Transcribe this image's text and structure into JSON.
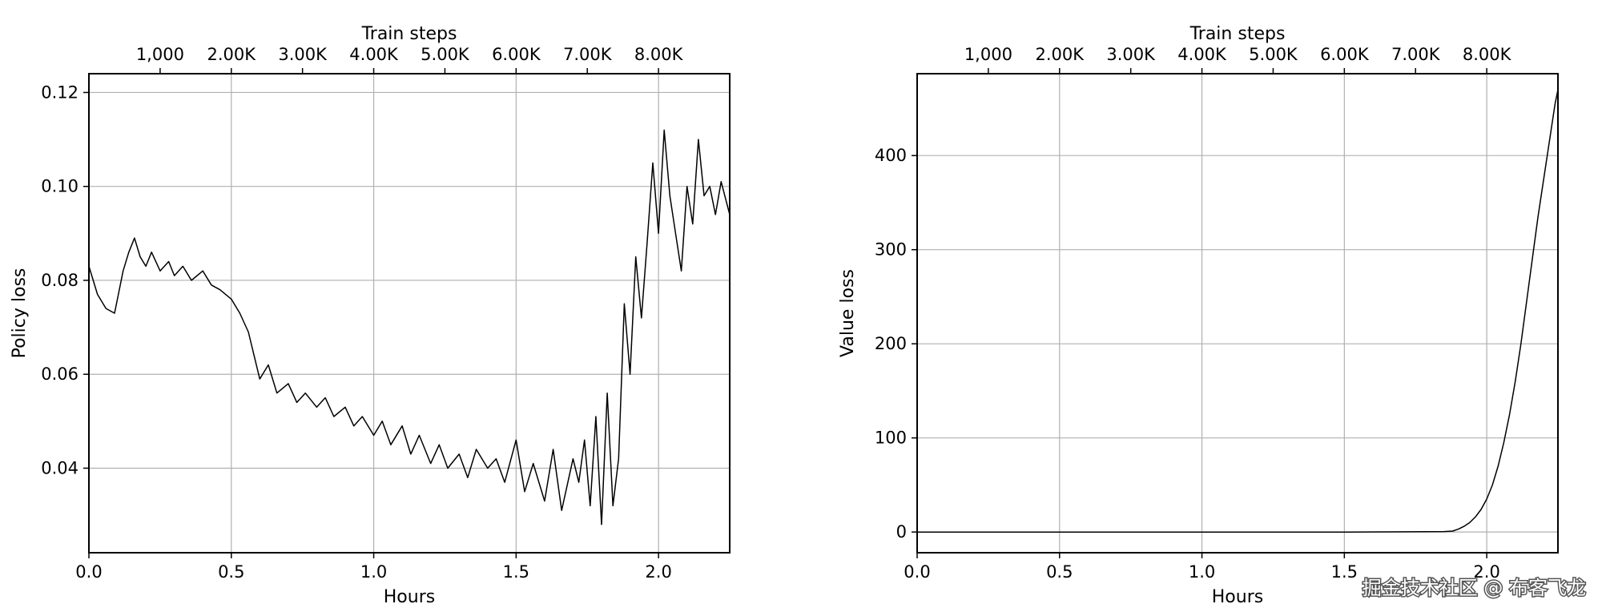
{
  "watermark": "掘金技术社区 @ 布客飞龙",
  "chart_data": [
    {
      "type": "line",
      "xlabel": "Hours",
      "ylabel": "Policy loss",
      "top_xlabel": "Train steps",
      "xlim": [
        0.0,
        2.25
      ],
      "ylim": [
        0.022,
        0.124
      ],
      "x_ticks": [
        0.0,
        0.5,
        1.0,
        1.5,
        2.0
      ],
      "x_tick_labels": [
        "0.0",
        "0.5",
        "1.0",
        "1.5",
        "2.0"
      ],
      "y_ticks": [
        0.04,
        0.06,
        0.08,
        0.1,
        0.12
      ],
      "y_tick_labels": [
        "0.04",
        "0.06",
        "0.08",
        "0.10",
        "0.12"
      ],
      "top_ticks_hours": [
        0.25,
        0.5,
        0.75,
        1.0,
        1.25,
        1.5,
        1.75,
        2.0
      ],
      "top_tick_labels": [
        "1,000",
        "2.00K",
        "3.00K",
        "4.00K",
        "5.00K",
        "6.00K",
        "7.00K",
        "8.00K"
      ],
      "grid": true,
      "line_color": "#000000",
      "series": [
        {
          "x": [
            0.0,
            0.03,
            0.06,
            0.09,
            0.1,
            0.12,
            0.14,
            0.16,
            0.18,
            0.2,
            0.22,
            0.25,
            0.28,
            0.3,
            0.33,
            0.36,
            0.4,
            0.43,
            0.46,
            0.5,
            0.53,
            0.56,
            0.58,
            0.6,
            0.63,
            0.66,
            0.7,
            0.73,
            0.76,
            0.8,
            0.83,
            0.86,
            0.9,
            0.93,
            0.96,
            1.0,
            1.03,
            1.06,
            1.1,
            1.13,
            1.16,
            1.2,
            1.23,
            1.26,
            1.3,
            1.33,
            1.36,
            1.4,
            1.43,
            1.46,
            1.5,
            1.53,
            1.56,
            1.6,
            1.63,
            1.66,
            1.7,
            1.72,
            1.74,
            1.76,
            1.78,
            1.8,
            1.82,
            1.84,
            1.86,
            1.88,
            1.9,
            1.92,
            1.94,
            1.96,
            1.98,
            2.0,
            2.02,
            2.04,
            2.06,
            2.08,
            2.1,
            2.12,
            2.14,
            2.16,
            2.18,
            2.2,
            2.22,
            2.25
          ],
          "y": [
            0.083,
            0.077,
            0.074,
            0.073,
            0.076,
            0.082,
            0.086,
            0.089,
            0.085,
            0.083,
            0.086,
            0.082,
            0.084,
            0.081,
            0.083,
            0.08,
            0.082,
            0.079,
            0.078,
            0.076,
            0.073,
            0.069,
            0.064,
            0.059,
            0.062,
            0.056,
            0.058,
            0.054,
            0.056,
            0.053,
            0.055,
            0.051,
            0.053,
            0.049,
            0.051,
            0.047,
            0.05,
            0.045,
            0.049,
            0.043,
            0.047,
            0.041,
            0.045,
            0.04,
            0.043,
            0.038,
            0.044,
            0.04,
            0.042,
            0.037,
            0.046,
            0.035,
            0.041,
            0.033,
            0.044,
            0.031,
            0.042,
            0.037,
            0.046,
            0.032,
            0.051,
            0.028,
            0.056,
            0.032,
            0.042,
            0.075,
            0.06,
            0.085,
            0.072,
            0.088,
            0.105,
            0.09,
            0.112,
            0.098,
            0.09,
            0.082,
            0.1,
            0.092,
            0.11,
            0.098,
            0.1,
            0.094,
            0.101,
            0.094
          ]
        }
      ]
    },
    {
      "type": "line",
      "xlabel": "Hours",
      "ylabel": "Value loss",
      "top_xlabel": "Train steps",
      "xlim": [
        0.0,
        2.25
      ],
      "ylim": [
        -22,
        487
      ],
      "x_ticks": [
        0.0,
        0.5,
        1.0,
        1.5,
        2.0
      ],
      "x_tick_labels": [
        "0.0",
        "0.5",
        "1.0",
        "1.5",
        "2.0"
      ],
      "y_ticks": [
        0,
        100,
        200,
        300,
        400
      ],
      "y_tick_labels": [
        "0",
        "100",
        "200",
        "300",
        "400"
      ],
      "top_ticks_hours": [
        0.25,
        0.5,
        0.75,
        1.0,
        1.25,
        1.5,
        1.75,
        2.0
      ],
      "top_tick_labels": [
        "1,000",
        "2.00K",
        "3.00K",
        "4.00K",
        "5.00K",
        "6.00K",
        "7.00K",
        "8.00K"
      ],
      "grid": true,
      "line_color": "#000000",
      "series": [
        {
          "x": [
            0.0,
            0.5,
            1.0,
            1.5,
            1.85,
            1.88,
            1.9,
            1.92,
            1.94,
            1.96,
            1.98,
            2.0,
            2.02,
            2.04,
            2.06,
            2.08,
            2.1,
            2.12,
            2.14,
            2.16,
            2.18,
            2.2,
            2.22,
            2.24,
            2.25
          ],
          "y": [
            0,
            0,
            0,
            0,
            0.5,
            1,
            3,
            6,
            10,
            16,
            24,
            35,
            50,
            70,
            95,
            125,
            160,
            200,
            245,
            290,
            335,
            375,
            415,
            455,
            470
          ]
        }
      ]
    }
  ]
}
